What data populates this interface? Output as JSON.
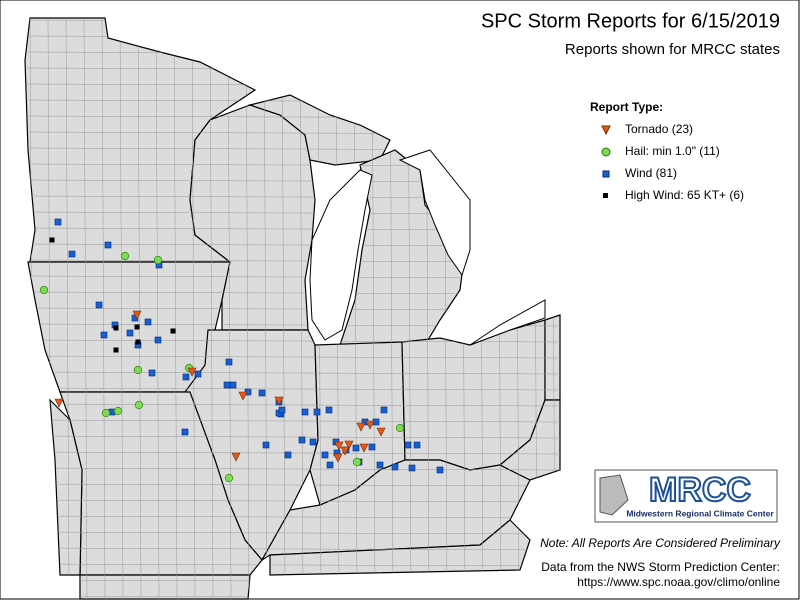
{
  "header": {
    "title": "SPC Storm Reports for 6/15/2019",
    "subtitle": "Reports shown for MRCC states"
  },
  "legend": {
    "title": "Report Type:",
    "items": [
      "Tornado (23)",
      "Hail: min 1.0\" (11)",
      "Wind (81)",
      "High Wind: 65 KT+ (6)"
    ]
  },
  "logo": {
    "name": "MRCC",
    "caption": "Midwestern Regional Climate Center"
  },
  "note": "Note: All Reports Are Considered Preliminary",
  "source": [
    "Data from the NWS Storm Prediction Center:",
    "https://www.spc.noaa.gov/climo/online"
  ]
}
